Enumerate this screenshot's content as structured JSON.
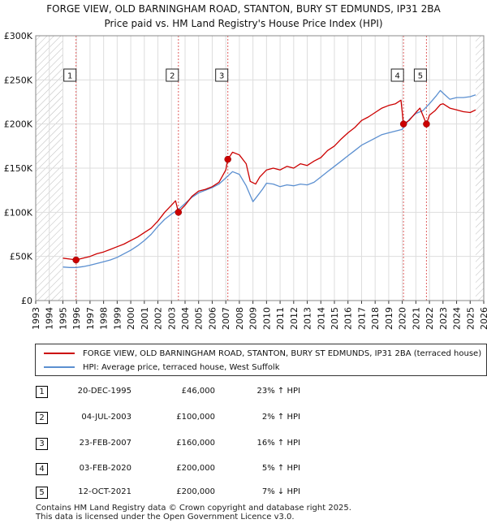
{
  "chart_data": {
    "type": "line",
    "title": "FORGE VIEW, OLD BARNINGHAM ROAD, STANTON, BURY ST EDMUNDS, IP31 2BA",
    "subtitle": "Price paid vs. HM Land Registry's House Price Index (HPI)",
    "xlabel": "",
    "ylabel": "",
    "xlim": [
      1993,
      2026
    ],
    "ylim": [
      0,
      300000
    ],
    "x_ticks": [
      "1993",
      "1994",
      "1995",
      "1996",
      "1997",
      "1998",
      "1999",
      "2000",
      "2001",
      "2002",
      "2003",
      "2004",
      "2005",
      "2006",
      "2007",
      "2008",
      "2009",
      "2010",
      "2011",
      "2012",
      "2013",
      "2014",
      "2015",
      "2016",
      "2017",
      "2018",
      "2019",
      "2020",
      "2021",
      "2022",
      "2023",
      "2024",
      "2025",
      "2026"
    ],
    "y_ticks": [
      {
        "value": 0,
        "label": "£0"
      },
      {
        "value": 50000,
        "label": "£50K"
      },
      {
        "value": 100000,
        "label": "£100K"
      },
      {
        "value": 150000,
        "label": "£150K"
      },
      {
        "value": 200000,
        "label": "£200K"
      },
      {
        "value": 250000,
        "label": "£250K"
      },
      {
        "value": 300000,
        "label": "£300K"
      }
    ],
    "grid": true,
    "hatched_ranges": [
      [
        1993,
        1995.0
      ],
      [
        2025.4,
        2026
      ]
    ],
    "series": [
      {
        "name": "FORGE VIEW, OLD BARNINGHAM ROAD, STANTON, BURY ST EDMUNDS, IP31 2BA (terraced house)",
        "color": "#cc0000",
        "x": [
          1995.0,
          1995.5,
          1995.97,
          1996.5,
          1997.0,
          1997.5,
          1998.0,
          1998.5,
          1999.0,
          1999.5,
          2000.0,
          2000.5,
          2001.0,
          2001.5,
          2002.0,
          2002.5,
          2003.0,
          2003.3,
          2003.51,
          2004.0,
          2004.5,
          2005.0,
          2005.5,
          2006.0,
          2006.5,
          2007.0,
          2007.15,
          2007.5,
          2008.0,
          2008.5,
          2008.8,
          2009.2,
          2009.5,
          2010.0,
          2010.5,
          2011.0,
          2011.5,
          2012.0,
          2012.5,
          2013.0,
          2013.5,
          2014.0,
          2014.5,
          2015.0,
          2015.5,
          2016.0,
          2016.5,
          2017.0,
          2017.5,
          2018.0,
          2018.5,
          2019.0,
          2019.5,
          2019.9,
          2020.09,
          2020.5,
          2021.0,
          2021.3,
          2021.78,
          2022.0,
          2022.4,
          2022.8,
          2023.0,
          2023.5,
          2024.0,
          2024.5,
          2025.0,
          2025.4
        ],
        "y": [
          48000,
          47000,
          46000,
          48000,
          50000,
          53000,
          55000,
          58000,
          61000,
          64000,
          68000,
          72000,
          77000,
          82000,
          90000,
          100000,
          108000,
          113000,
          100000,
          108000,
          118000,
          124000,
          126000,
          129000,
          134000,
          148000,
          160000,
          168000,
          165000,
          155000,
          135000,
          132000,
          140000,
          148000,
          150000,
          148000,
          152000,
          150000,
          155000,
          153000,
          158000,
          162000,
          170000,
          175000,
          183000,
          190000,
          196000,
          204000,
          208000,
          213000,
          218000,
          221000,
          223000,
          227000,
          200000,
          204000,
          213000,
          218000,
          200000,
          210000,
          215000,
          222000,
          223000,
          218000,
          216000,
          214000,
          213000,
          216000
        ]
      },
      {
        "name": "HPI: Average price, terraced house, West Suffolk",
        "color": "#5b8fd0",
        "x": [
          1995.0,
          1995.5,
          1996.0,
          1996.5,
          1997.0,
          1997.5,
          1998.0,
          1998.5,
          1999.0,
          1999.5,
          2000.0,
          2000.5,
          2001.0,
          2001.5,
          2002.0,
          2002.5,
          2003.0,
          2003.5,
          2004.0,
          2004.5,
          2005.0,
          2005.5,
          2006.0,
          2006.5,
          2007.0,
          2007.5,
          2008.0,
          2008.5,
          2009.0,
          2009.3,
          2009.7,
          2010.0,
          2010.5,
          2011.0,
          2011.5,
          2012.0,
          2012.5,
          2013.0,
          2013.5,
          2014.0,
          2014.5,
          2015.0,
          2015.5,
          2016.0,
          2016.5,
          2017.0,
          2017.5,
          2018.0,
          2018.5,
          2019.0,
          2019.5,
          2020.0,
          2020.5,
          2021.0,
          2021.5,
          2022.0,
          2022.5,
          2022.8,
          2023.0,
          2023.5,
          2024.0,
          2024.5,
          2025.0,
          2025.4
        ],
        "y": [
          38000,
          37500,
          37500,
          38500,
          40000,
          42000,
          44000,
          46000,
          49000,
          53000,
          57000,
          62000,
          68000,
          75000,
          84000,
          92000,
          98000,
          103000,
          110000,
          117000,
          122000,
          125000,
          128000,
          132000,
          139000,
          146000,
          143000,
          130000,
          112000,
          118000,
          126000,
          133000,
          132000,
          129000,
          131000,
          130000,
          132000,
          131000,
          134000,
          140000,
          146000,
          152000,
          158000,
          164000,
          170000,
          176000,
          180000,
          184000,
          188000,
          190000,
          192000,
          194000,
          205000,
          212000,
          215000,
          223000,
          232000,
          238000,
          235000,
          228000,
          230000,
          230000,
          231000,
          233000
        ]
      }
    ],
    "sales": [
      {
        "id": "1",
        "date": "20-DEC-1995",
        "year": 1995.97,
        "price": 46000,
        "price_label": "£46,000",
        "hpi": "23% ↑ HPI"
      },
      {
        "id": "2",
        "date": "04-JUL-2003",
        "year": 2003.51,
        "price": 100000,
        "price_label": "£100,000",
        "hpi": "2% ↑ HPI"
      },
      {
        "id": "3",
        "date": "23-FEB-2007",
        "year": 2007.15,
        "price": 160000,
        "price_label": "£160,000",
        "hpi": "16% ↑ HPI"
      },
      {
        "id": "4",
        "date": "03-FEB-2020",
        "year": 2020.09,
        "price": 200000,
        "price_label": "£200,000",
        "hpi": "5% ↑ HPI"
      },
      {
        "id": "5",
        "date": "12-OCT-2021",
        "year": 2021.78,
        "price": 200000,
        "price_label": "£200,000",
        "hpi": "7% ↓ HPI"
      }
    ],
    "legend": [
      "FORGE VIEW, OLD BARNINGHAM ROAD, STANTON, BURY ST EDMUNDS, IP31 2BA (terraced house)",
      "HPI: Average price, terraced house, West Suffolk"
    ]
  },
  "footer": {
    "line1": "Contains HM Land Registry data © Crown copyright and database right 2025.",
    "line2": "This data is licensed under the Open Government Licence v3.0."
  }
}
